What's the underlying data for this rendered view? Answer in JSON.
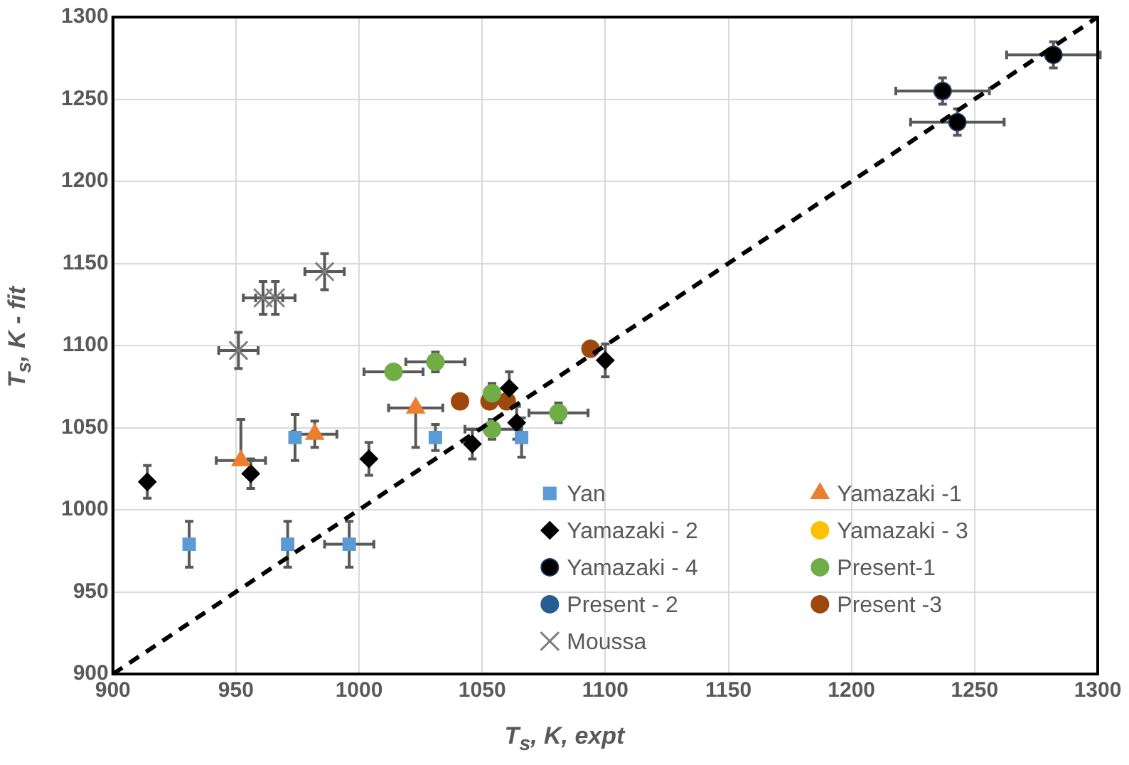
{
  "chart_data": {
    "type": "scatter",
    "xlabel": "T$_{s}$, K,  expt",
    "ylabel": "T$_{s}$, K - fit",
    "xlim": [
      900,
      1300
    ],
    "xticks": [
      900,
      950,
      1000,
      1050,
      1100,
      1150,
      1200,
      1250,
      1300
    ],
    "ylim": [
      900,
      1300
    ],
    "yticks": [
      900,
      950,
      1000,
      1050,
      1100,
      1150,
      1200,
      1250,
      1300
    ],
    "grid": true,
    "legend": "bottom right",
    "series": [
      {
        "name": "Yan",
        "color": "#5b9bd5",
        "marker": "square",
        "x": [
          931,
          971,
          996,
          974,
          1031,
          1066
        ],
        "values": [
          979,
          979,
          979,
          1044,
          1044,
          1044
        ],
        "errors": [
          14,
          14,
          14,
          14,
          8,
          12
        ],
        "xerrors": [
          null,
          null,
          10,
          null,
          null,
          null
        ]
      },
      {
        "name": "Yamazaki -1",
        "color": "#ed7d31",
        "marker": "triangle",
        "x": [
          952,
          982,
          1023
        ],
        "values": [
          1030,
          1046,
          1062
        ],
        "errors": [
          [
            1030,
            1055
          ],
          8,
          [
            1038,
            1062
          ]
        ],
        "xerrors": [
          10,
          9,
          11
        ]
      },
      {
        "name": "Yamazaki - 2",
        "color": "#000000",
        "marker": "diamond",
        "x": [
          914,
          956,
          1004,
          1046,
          1061,
          1064,
          1100
        ],
        "values": [
          1017,
          1022,
          1031,
          1040,
          1074,
          1053,
          1091
        ],
        "errors": [
          10,
          9,
          10,
          9,
          10,
          10,
          10
        ]
      },
      {
        "name": "Yamazaki - 3",
        "color": "#ffc000",
        "marker": "circle"
      },
      {
        "name": "Yamazaki - 4",
        "color": "#000000",
        "marker": "circle",
        "x": [
          1237,
          1243,
          1282
        ],
        "values": [
          1255,
          1236,
          1277
        ],
        "errors": [
          8,
          8,
          8
        ],
        "xerrors": [
          19,
          19,
          19
        ]
      },
      {
        "name": "Present-1",
        "color": "#70ad47",
        "marker": "circle",
        "x": [
          1014,
          1031,
          1054,
          1054,
          1081
        ],
        "values": [
          1084,
          1090,
          1071,
          1049,
          1059
        ],
        "errors": [
          null,
          6,
          6,
          6,
          6
        ],
        "xerrors": [
          12,
          12,
          null,
          11,
          12
        ]
      },
      {
        "name": "Present - 2",
        "color": "#255e91",
        "marker": "circle"
      },
      {
        "name": "Present -3",
        "color": "#9e480e",
        "marker": "circle",
        "x": [
          1041,
          1053,
          1060,
          1094
        ],
        "values": [
          1066,
          1066,
          1066,
          1098
        ]
      },
      {
        "name": "Moussa",
        "color": "#7f7f7f",
        "marker": "cross",
        "x": [
          951,
          961,
          966,
          986
        ],
        "values": [
          1097,
          1129,
          1129,
          1145
        ],
        "errors": [
          11,
          10,
          10,
          11
        ],
        "xerrors": [
          8,
          8,
          8,
          8
        ]
      },
      {
        "type": "line",
        "color": "#000000",
        "line_style": "dashed",
        "marker": "none",
        "x": [
          900,
          1300
        ],
        "values": [
          900,
          1300
        ]
      }
    ]
  }
}
